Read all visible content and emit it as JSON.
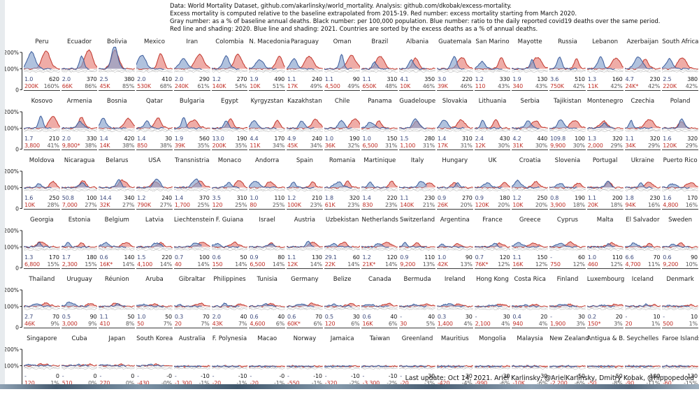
{
  "header": {
    "lines": [
      "Data: World Mortality Dataset, github.com/akarlinsky/world_mortality. Analysis: github.com/dkobak/excess-mortality.",
      "Excess mortality is computed relative to the baseline extrapolated from 2015-19. Red number: excess mortality starting from March 2020.",
      "Gray number: as a % of baseline annual deaths. Black number: per 100,000 population. Blue number: ratio to the daily reported covid19 deaths over the same period.",
      "Red line and shading: 2020. Blue line and shading: 2021. Countries are sorted by the excess deaths as a % of annual deaths."
    ]
  },
  "footer": {
    "text": "Last update: Oct 14, 2021. Ariel Karlinsky, @ArielKarlinsky, Dmitry Kobak, @hippopedoid"
  },
  "axis": {
    "ticks": [
      "200%",
      "100%",
      "0"
    ]
  },
  "colors": {
    "red_line": "#c23a30",
    "red_fill": "rgba(226,104,95,0.55)",
    "blue_line": "#3f5f9e",
    "blue_fill": "rgba(134,161,205,0.65)",
    "gray_line": "#bcbcbc",
    "blue_num": "#3d4a7d",
    "black_num": "#141414",
    "red_num": "#c02f27",
    "gray_num": "#585858"
  },
  "chart_data": {
    "type": "line",
    "subtype": "small-multiples-excess-mortality",
    "x_axis": "months (one calendar year, 2020 red vs 2021 blue)",
    "ylim_labels": [
      "0",
      "100%",
      "200%"
    ],
    "legend": {
      "blue_number": "ratio to daily reported covid19 deaths",
      "black_number": "excess deaths per 100,000 population",
      "red_number": "excess mortality since March 2020",
      "gray_number": "% of baseline annual deaths"
    },
    "rows": [
      [
        {
          "name": "Peru",
          "ratio": "1.0",
          "per100k": "620",
          "excess": "200K",
          "pct": "160%"
        },
        {
          "name": "Ecuador",
          "ratio": "2.0",
          "per100k": "370",
          "excess": "66K",
          "pct": "86%"
        },
        {
          "name": "Bolivia",
          "ratio": "2.5",
          "per100k": "380",
          "excess": "45K",
          "pct": "85%"
        },
        {
          "name": "Mexico",
          "ratio": "2.0",
          "per100k": "410",
          "excess": "530K",
          "pct": "68%"
        },
        {
          "name": "Iran",
          "ratio": "2.0",
          "per100k": "290",
          "excess": "240K",
          "pct": "61%"
        },
        {
          "name": "Colombia",
          "ratio": "1.2",
          "per100k": "270",
          "excess": "140K",
          "pct": "54%"
        },
        {
          "name": "N. Macedonia",
          "ratio": "1.9",
          "per100k": "490",
          "excess": "10K",
          "pct": "51%"
        },
        {
          "name": "Paraguay",
          "ratio": "1.1",
          "per100k": "240",
          "excess": "17K",
          "pct": "49%"
        },
        {
          "name": "Oman",
          "ratio": "1.1",
          "per100k": "90",
          "excess": "4,500",
          "pct": "49%"
        },
        {
          "name": "Brazil",
          "ratio": "1.1",
          "per100k": "310",
          "excess": "650K",
          "pct": "48%"
        },
        {
          "name": "Albania",
          "ratio": "4.1",
          "per100k": "350",
          "excess": "10K",
          "pct": "46%"
        },
        {
          "name": "Guatemala",
          "ratio": "3.0",
          "per100k": "220",
          "excess": "39K",
          "pct": "46%"
        },
        {
          "name": "San Marino",
          "ratio": "1.2",
          "per100k": "330",
          "excess": "110",
          "pct": "43%"
        },
        {
          "name": "Mayotte",
          "ratio": "1.9",
          "per100k": "130",
          "excess": "340",
          "pct": "43%"
        },
        {
          "name": "Russia",
          "ratio": "3.6",
          "per100k": "510",
          "excess": "750K",
          "pct": "42%"
        },
        {
          "name": "Lebanon",
          "ratio": "1.3",
          "per100k": "160",
          "excess": "11K",
          "pct": "42%"
        },
        {
          "name": "Azerbaijan",
          "ratio": "4.7",
          "per100k": "230",
          "excess": "24K*",
          "pct": "42%"
        },
        {
          "name": "South Africa",
          "ratio": "2.5",
          "per100k": "380",
          "excess": "220K",
          "pct": "42%"
        }
      ],
      [
        {
          "name": "Kosovo",
          "ratio": "1.7",
          "per100k": "210",
          "excess": "3,800",
          "pct": "41%"
        },
        {
          "name": "Armenia",
          "ratio": "2.0",
          "per100k": "330",
          "excess": "9,800*",
          "pct": "38%"
        },
        {
          "name": "Bosnia",
          "ratio": "1.4",
          "per100k": "420",
          "excess": "14K",
          "pct": "38%"
        },
        {
          "name": "Qatar",
          "ratio": "1.4",
          "per100k": "30",
          "excess": "850",
          "pct": "38%"
        },
        {
          "name": "Bulgaria",
          "ratio": "1.9",
          "per100k": "560",
          "excess": "39K",
          "pct": "35%"
        },
        {
          "name": "Egypt",
          "ratio": "13.0",
          "per100k": "190",
          "excess": "200K",
          "pct": "35%"
        },
        {
          "name": "Kyrgyzstan",
          "ratio": "4.4",
          "per100k": "170",
          "excess": "11K",
          "pct": "34%"
        },
        {
          "name": "Kazakhstan",
          "ratio": "4.9",
          "per100k": "240",
          "excess": "45K",
          "pct": "34%"
        },
        {
          "name": "Chile",
          "ratio": "1.0",
          "per100k": "190",
          "excess": "36K",
          "pct": "32%"
        },
        {
          "name": "Panama",
          "ratio": "1.0",
          "per100k": "150",
          "excess": "6,500",
          "pct": "31%"
        },
        {
          "name": "Guadeloupe",
          "ratio": "1.5",
          "per100k": "280",
          "excess": "1,100",
          "pct": "31%"
        },
        {
          "name": "Slovakia",
          "ratio": "1.4",
          "per100k": "310",
          "excess": "17K",
          "pct": "31%"
        },
        {
          "name": "Lithuania",
          "ratio": "2.4",
          "per100k": "430",
          "excess": "12K",
          "pct": "30%"
        },
        {
          "name": "Serbia",
          "ratio": "4.2",
          "per100k": "440",
          "excess": "31K",
          "pct": "30%"
        },
        {
          "name": "Tajikistan",
          "ratio": "109.8",
          "per100k": "100",
          "excess": "9,900",
          "pct": "30%"
        },
        {
          "name": "Montenegro",
          "ratio": "1.3",
          "per100k": "320",
          "excess": "2,000",
          "pct": "29%"
        },
        {
          "name": "Czechia",
          "ratio": "1.1",
          "per100k": "320",
          "excess": "34K",
          "pct": "29%"
        },
        {
          "name": "Poland",
          "ratio": "1.6",
          "per100k": "320",
          "excess": "120K",
          "pct": "29%"
        }
      ],
      [
        {
          "name": "Moldova",
          "ratio": "1.6",
          "per100k": "250",
          "excess": "10K",
          "pct": "28%"
        },
        {
          "name": "Nicaragua",
          "ratio": "50.8",
          "per100k": "100",
          "excess": "7,000",
          "pct": "27%"
        },
        {
          "name": "Belarus",
          "ratio": "14.4",
          "per100k": "340",
          "excess": "32K",
          "pct": "27%"
        },
        {
          "name": "USA",
          "ratio": "1.2",
          "per100k": "240",
          "excess": "790K",
          "pct": "27%"
        },
        {
          "name": "Transnistria",
          "ratio": "1.4",
          "per100k": "370",
          "excess": "1,700",
          "pct": "25%"
        },
        {
          "name": "Monaco",
          "ratio": "3.5",
          "per100k": "310",
          "excess": "120",
          "pct": "25%"
        },
        {
          "name": "Andorra",
          "ratio": "1.0",
          "per100k": "110",
          "excess": "80",
          "pct": "25%"
        },
        {
          "name": "Spain",
          "ratio": "1.2",
          "per100k": "210",
          "excess": "100K",
          "pct": "23%"
        },
        {
          "name": "Romania",
          "ratio": "1.8",
          "per100k": "320",
          "excess": "61K",
          "pct": "23%"
        },
        {
          "name": "Martinique",
          "ratio": "1.4",
          "per100k": "220",
          "excess": "830",
          "pct": "23%"
        },
        {
          "name": "Italy",
          "ratio": "1.1",
          "per100k": "230",
          "excess": "140K",
          "pct": "21%"
        },
        {
          "name": "Hungary",
          "ratio": "0.9",
          "per100k": "270",
          "excess": "26K",
          "pct": "20%"
        },
        {
          "name": "UK",
          "ratio": "0.9",
          "per100k": "180",
          "excess": "120K",
          "pct": "20%"
        },
        {
          "name": "Croatia",
          "ratio": "1.2",
          "per100k": "250",
          "excess": "10K",
          "pct": "20%"
        },
        {
          "name": "Slovenia",
          "ratio": "0.8",
          "per100k": "190",
          "excess": "3,900",
          "pct": "18%"
        },
        {
          "name": "Portugal",
          "ratio": "1.1",
          "per100k": "200",
          "excess": "20K",
          "pct": "18%"
        },
        {
          "name": "Ukraine",
          "ratio": "1.8",
          "per100k": "230",
          "excess": "94K",
          "pct": "16%"
        },
        {
          "name": "Puerto Rico",
          "ratio": "1.6",
          "per100k": "170",
          "excess": "4,800",
          "pct": "16%"
        }
      ],
      [
        {
          "name": "Georgia",
          "ratio": "1.3",
          "per100k": "170",
          "excess": "6,800",
          "pct": "15%"
        },
        {
          "name": "Estonia",
          "ratio": "1.7",
          "per100k": "180",
          "excess": "2,300",
          "pct": "15%"
        },
        {
          "name": "Belgium",
          "ratio": "0.6",
          "per100k": "140",
          "excess": "16K*",
          "pct": "14%"
        },
        {
          "name": "Latvia",
          "ratio": "1.5",
          "per100k": "220",
          "excess": "4,100",
          "pct": "14%"
        },
        {
          "name": "Liechtenstein",
          "ratio": "0.7",
          "per100k": "100",
          "excess": "40",
          "pct": "14%"
        },
        {
          "name": "F. Guiana",
          "ratio": "0.6",
          "per100k": "50",
          "excess": "150",
          "pct": "14%"
        },
        {
          "name": "Israel",
          "ratio": "0.9",
          "per100k": "80",
          "excess": "6,500",
          "pct": "14%"
        },
        {
          "name": "Austria",
          "ratio": "1.1",
          "per100k": "130",
          "excess": "12K",
          "pct": "14%"
        },
        {
          "name": "Uzbekistan",
          "ratio": "29.1",
          "per100k": "60",
          "excess": "22K",
          "pct": "14%"
        },
        {
          "name": "Netherlands",
          "ratio": "1.2",
          "per100k": "120",
          "excess": "21K*",
          "pct": "14%"
        },
        {
          "name": "Switzerland",
          "ratio": "0.9",
          "per100k": "110",
          "excess": "9,200",
          "pct": "13%"
        },
        {
          "name": "Argentina",
          "ratio": "1.0",
          "per100k": "90",
          "excess": "42K",
          "pct": "13%"
        },
        {
          "name": "France",
          "ratio": "0.7",
          "per100k": "120",
          "excess": "76K*",
          "pct": "12%"
        },
        {
          "name": "Greece",
          "ratio": "1.1",
          "per100k": "150",
          "excess": "16K",
          "pct": "12%"
        },
        {
          "name": "Cyprus",
          "ratio": "-",
          "per100k": "60",
          "excess": "750",
          "pct": "12%"
        },
        {
          "name": "Malta",
          "ratio": "1.0",
          "per100k": "110",
          "excess": "460",
          "pct": "12%"
        },
        {
          "name": "El Salvador",
          "ratio": "6.6",
          "per100k": "70",
          "excess": "4,700",
          "pct": "11%"
        },
        {
          "name": "Sweden",
          "ratio": "0.6",
          "per100k": "90",
          "excess": "9,200",
          "pct": "10%"
        }
      ],
      [
        {
          "name": "Thailand",
          "ratio": "2.7",
          "per100k": "70",
          "excess": "46K",
          "pct": "9%"
        },
        {
          "name": "Uruguay",
          "ratio": "0.5",
          "per100k": "90",
          "excess": "3,000",
          "pct": "9%"
        },
        {
          "name": "Réunion",
          "ratio": "1.1",
          "per100k": "50",
          "excess": "410",
          "pct": "8%"
        },
        {
          "name": "Aruba",
          "ratio": "1.0",
          "per100k": "50",
          "excess": "50",
          "pct": "7%"
        },
        {
          "name": "Gibraltar",
          "ratio": "0.3",
          "per100k": "70",
          "excess": "20",
          "pct": "7%"
        },
        {
          "name": "Philippines",
          "ratio": "2.0",
          "per100k": "40",
          "excess": "43K",
          "pct": "7%"
        },
        {
          "name": "Tunisia",
          "ratio": "0.6",
          "per100k": "40",
          "excess": "4,600",
          "pct": "6%"
        },
        {
          "name": "Germany",
          "ratio": "0.6",
          "per100k": "70",
          "excess": "60K*",
          "pct": "6%"
        },
        {
          "name": "Belize",
          "ratio": "0.5",
          "per100k": "30",
          "excess": "120",
          "pct": "6%"
        },
        {
          "name": "Canada",
          "ratio": "0.6",
          "per100k": "40",
          "excess": "16K",
          "pct": "6%"
        },
        {
          "name": "Bermuda",
          "ratio": "-",
          "per100k": "40",
          "excess": "30",
          "pct": "5%"
        },
        {
          "name": "Ireland",
          "ratio": "0.3",
          "per100k": "30",
          "excess": "1,400",
          "pct": "4%"
        },
        {
          "name": "Hong Kong",
          "ratio": "-",
          "per100k": "30",
          "excess": "2,100",
          "pct": "4%"
        },
        {
          "name": "Costa Rica",
          "ratio": "0.4",
          "per100k": "20",
          "excess": "940",
          "pct": "4%"
        },
        {
          "name": "Finland",
          "ratio": "-",
          "per100k": "30",
          "excess": "1,900",
          "pct": "3%"
        },
        {
          "name": "Luxembourg",
          "ratio": "0.2",
          "per100k": "20",
          "excess": "150*",
          "pct": "3%"
        },
        {
          "name": "Iceland",
          "ratio": "-",
          "per100k": "10",
          "excess": "20",
          "pct": "1%"
        },
        {
          "name": "Denmark",
          "ratio": "-",
          "per100k": "10",
          "excess": "500",
          "pct": "1%"
        }
      ],
      [
        {
          "name": "Singapore",
          "ratio": "-",
          "per100k": "0",
          "excess": "120",
          "pct": "1%"
        },
        {
          "name": "Cuba",
          "ratio": "-",
          "per100k": "0",
          "excess": "510",
          "pct": "0%"
        },
        {
          "name": "Japan",
          "ratio": "-",
          "per100k": "0",
          "excess": "270",
          "pct": "0%"
        },
        {
          "name": "South Korea",
          "ratio": "-",
          "per100k": "-0",
          "excess": "-430",
          "pct": "-0%"
        },
        {
          "name": "Australia",
          "ratio": "-",
          "per100k": "-10",
          "excess": "-1,300",
          "pct": "-1%"
        },
        {
          "name": "F. Polynesia",
          "ratio": "-",
          "per100k": "-10",
          "excess": "-20",
          "pct": "-1%"
        },
        {
          "name": "Macao",
          "ratio": "-",
          "per100k": "-0",
          "excess": "-20",
          "pct": "-1%"
        },
        {
          "name": "Norway",
          "ratio": "-",
          "per100k": "-10",
          "excess": "-550",
          "pct": "-1%"
        },
        {
          "name": "Jamaica",
          "ratio": "-",
          "per100k": "-10",
          "excess": "-320",
          "pct": "-2%"
        },
        {
          "name": "Taiwan",
          "ratio": "-",
          "per100k": "-10",
          "excess": "-3,300",
          "pct": "-2%"
        },
        {
          "name": "Greenland",
          "ratio": "-",
          "per100k": "-30",
          "excess": "-20",
          "pct": "-3%"
        },
        {
          "name": "Mauritius",
          "ratio": "-",
          "per100k": "-30",
          "excess": "-420",
          "pct": "-4%"
        },
        {
          "name": "Mongolia",
          "ratio": "-",
          "per100k": "-30",
          "excess": "-990",
          "pct": "-6%"
        },
        {
          "name": "Malaysia",
          "ratio": "-",
          "per100k": "-30",
          "excess": "-10K",
          "pct": "-6%"
        },
        {
          "name": "New Zealand",
          "ratio": "-",
          "per100k": "-50",
          "excess": "-2,200",
          "pct": "-6%"
        },
        {
          "name": "Antigua & B.",
          "ratio": "-",
          "per100k": "-50",
          "excess": "-50",
          "pct": "-8%"
        },
        {
          "name": "Seychelles",
          "ratio": "-",
          "per100k": "-100",
          "excess": "-90",
          "pct": "-11%"
        },
        {
          "name": "Faroe Islands",
          "ratio": "-",
          "per100k": "-130",
          "excess": "-60",
          "pct": "-15%"
        }
      ]
    ]
  }
}
